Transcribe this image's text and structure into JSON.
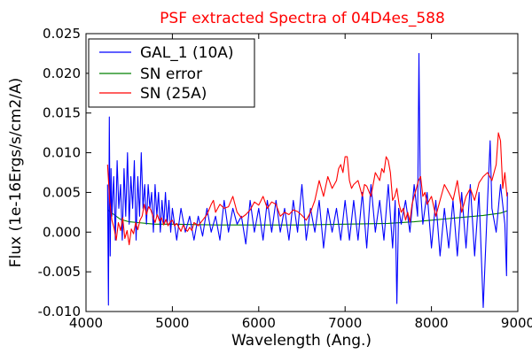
{
  "chart_data": {
    "type": "line",
    "title": "PSF extracted Spectra of 04D4es_588",
    "title_color": "#ff0000",
    "xlabel": "Wavelength (Ang.)",
    "ylabel": "Flux (1e-16Ergs/s/cm2/A)",
    "xlim": [
      4000,
      9000
    ],
    "ylim": [
      -0.01,
      0.025
    ],
    "x_ticks": [
      "4000",
      "5000",
      "6000",
      "7000",
      "8000",
      "9000"
    ],
    "y_ticks": [
      "-0.010",
      "-0.005",
      "0.000",
      "0.005",
      "0.010",
      "0.015",
      "0.020",
      "0.025"
    ],
    "grid": false,
    "legend_position": "upper-left",
    "series": [
      {
        "name": "GAL_1 (10A)",
        "color": "#0000ff",
        "points": [
          [
            4250,
            0.006
          ],
          [
            4260,
            -0.0092
          ],
          [
            4270,
            0.0145
          ],
          [
            4280,
            -0.003
          ],
          [
            4290,
            0.008
          ],
          [
            4300,
            0.002
          ],
          [
            4320,
            0.007
          ],
          [
            4340,
            -0.001
          ],
          [
            4360,
            0.009
          ],
          [
            4380,
            0.003
          ],
          [
            4400,
            0.006
          ],
          [
            4420,
            -0.001
          ],
          [
            4440,
            0.008
          ],
          [
            4460,
            0.002
          ],
          [
            4480,
            0.01
          ],
          [
            4500,
            0.001
          ],
          [
            4520,
            0.007
          ],
          [
            4540,
            0.003
          ],
          [
            4560,
            0.009
          ],
          [
            4580,
            -0.001
          ],
          [
            4600,
            0.007
          ],
          [
            4620,
            0.002
          ],
          [
            4640,
            0.01
          ],
          [
            4660,
            0.003
          ],
          [
            4680,
            0.006
          ],
          [
            4700,
            0.001
          ],
          [
            4720,
            0.006
          ],
          [
            4740,
            0.003
          ],
          [
            4760,
            0.005
          ],
          [
            4780,
            0.0
          ],
          [
            4800,
            0.006
          ],
          [
            4820,
            0.002
          ],
          [
            4840,
            0.005
          ],
          [
            4860,
            0.0
          ],
          [
            4880,
            0.004
          ],
          [
            4900,
            0.001
          ],
          [
            4920,
            0.005
          ],
          [
            4940,
            0.001
          ],
          [
            4960,
            0.004
          ],
          [
            4980,
            0.0
          ],
          [
            5000,
            0.003
          ],
          [
            5050,
            -0.001
          ],
          [
            5100,
            0.003
          ],
          [
            5150,
            0.0
          ],
          [
            5200,
            0.002
          ],
          [
            5250,
            -0.001
          ],
          [
            5300,
            0.002
          ],
          [
            5350,
            -0.0005
          ],
          [
            5400,
            0.003
          ],
          [
            5450,
            0.0
          ],
          [
            5500,
            0.002
          ],
          [
            5550,
            -0.001
          ],
          [
            5600,
            0.004
          ],
          [
            5650,
            0.0
          ],
          [
            5700,
            0.003
          ],
          [
            5750,
            0.001
          ],
          [
            5800,
            0.002
          ],
          [
            5850,
            -0.0015
          ],
          [
            5900,
            0.004
          ],
          [
            5950,
            0.0
          ],
          [
            6000,
            0.003
          ],
          [
            6050,
            -0.001
          ],
          [
            6100,
            0.004
          ],
          [
            6150,
            0.0
          ],
          [
            6200,
            0.004
          ],
          [
            6250,
            0.0
          ],
          [
            6300,
            0.003
          ],
          [
            6350,
            -0.001
          ],
          [
            6400,
            0.004
          ],
          [
            6450,
            0.0
          ],
          [
            6500,
            0.006
          ],
          [
            6550,
            -0.001
          ],
          [
            6600,
            0.003
          ],
          [
            6650,
            0.0
          ],
          [
            6700,
            0.004
          ],
          [
            6750,
            -0.002
          ],
          [
            6800,
            0.003
          ],
          [
            6850,
            0.0
          ],
          [
            6900,
            0.003
          ],
          [
            6950,
            -0.001
          ],
          [
            7000,
            0.004
          ],
          [
            7050,
            -0.001
          ],
          [
            7100,
            0.004
          ],
          [
            7150,
            -0.001
          ],
          [
            7200,
            0.005
          ],
          [
            7250,
            -0.002
          ],
          [
            7300,
            0.006
          ],
          [
            7350,
            0.0
          ],
          [
            7400,
            0.004
          ],
          [
            7450,
            -0.001
          ],
          [
            7500,
            0.006
          ],
          [
            7550,
            -0.002
          ],
          [
            7580,
            0.004
          ],
          [
            7600,
            -0.009
          ],
          [
            7620,
            0.003
          ],
          [
            7650,
            0.001
          ],
          [
            7700,
            0.004
          ],
          [
            7750,
            0.0
          ],
          [
            7800,
            0.006
          ],
          [
            7840,
            0.002
          ],
          [
            7855,
            0.0225
          ],
          [
            7870,
            0.006
          ],
          [
            7900,
            0.001
          ],
          [
            7950,
            0.005
          ],
          [
            8000,
            -0.002
          ],
          [
            8050,
            0.004
          ],
          [
            8100,
            -0.003
          ],
          [
            8150,
            0.003
          ],
          [
            8200,
            -0.002
          ],
          [
            8250,
            0.004
          ],
          [
            8300,
            -0.003
          ],
          [
            8350,
            0.005
          ],
          [
            8400,
            -0.002
          ],
          [
            8450,
            0.006
          ],
          [
            8500,
            -0.003
          ],
          [
            8550,
            0.005
          ],
          [
            8600,
            -0.0095
          ],
          [
            8650,
            0.004
          ],
          [
            8680,
            0.0115
          ],
          [
            8700,
            0.003
          ],
          [
            8750,
            0.0
          ],
          [
            8800,
            0.006
          ],
          [
            8850,
            0.001
          ],
          [
            8870,
            -0.0055
          ],
          [
            8880,
            0.005
          ]
        ]
      },
      {
        "name": "SN error",
        "color": "#008000",
        "points": [
          [
            4250,
            0.0028
          ],
          [
            4300,
            0.0024
          ],
          [
            4400,
            0.0016
          ],
          [
            4500,
            0.0013
          ],
          [
            4600,
            0.0012
          ],
          [
            4700,
            0.0011
          ],
          [
            4800,
            0.001
          ],
          [
            5000,
            0.001
          ],
          [
            5500,
            0.0009
          ],
          [
            6000,
            0.0009
          ],
          [
            6500,
            0.0009
          ],
          [
            7000,
            0.001
          ],
          [
            7500,
            0.0011
          ],
          [
            7800,
            0.0013
          ],
          [
            8000,
            0.0015
          ],
          [
            8200,
            0.0017
          ],
          [
            8400,
            0.0019
          ],
          [
            8600,
            0.0021
          ],
          [
            8800,
            0.0024
          ],
          [
            8880,
            0.0027
          ]
        ]
      },
      {
        "name": "SN (25A)",
        "color": "#ff0000",
        "points": [
          [
            4250,
            0.0085
          ],
          [
            4275,
            0.0038
          ],
          [
            4300,
            0.0015
          ],
          [
            4325,
            0.0005
          ],
          [
            4350,
            -0.001
          ],
          [
            4375,
            0.0012
          ],
          [
            4400,
            0.0002
          ],
          [
            4425,
            0.0018
          ],
          [
            4450,
            -0.0008
          ],
          [
            4475,
            0.0002
          ],
          [
            4500,
            -0.0016
          ],
          [
            4525,
            0.0004
          ],
          [
            4550,
            -0.0002
          ],
          [
            4575,
            0.0012
          ],
          [
            4600,
            0.0003
          ],
          [
            4625,
            0.0015
          ],
          [
            4650,
            0.002
          ],
          [
            4675,
            0.0035
          ],
          [
            4700,
            0.0022
          ],
          [
            4725,
            0.0032
          ],
          [
            4750,
            0.0028
          ],
          [
            4775,
            0.002
          ],
          [
            4800,
            0.0012
          ],
          [
            4825,
            0.0022
          ],
          [
            4850,
            0.0014
          ],
          [
            4875,
            0.0018
          ],
          [
            4900,
            0.0009
          ],
          [
            4925,
            0.0016
          ],
          [
            4950,
            0.0008
          ],
          [
            4975,
            0.0013
          ],
          [
            5000,
            0.0015
          ],
          [
            5025,
            0.0008
          ],
          [
            5050,
            0.0011
          ],
          [
            5075,
            0.0006
          ],
          [
            5100,
            0.0001
          ],
          [
            5125,
            0.0009
          ],
          [
            5150,
            0.0004
          ],
          [
            5175,
            0.0001
          ],
          [
            5200,
            0.0006
          ],
          [
            5225,
            0.0002
          ],
          [
            5250,
            0.0012
          ],
          [
            5300,
            0.0008
          ],
          [
            5350,
            0.0015
          ],
          [
            5400,
            0.0022
          ],
          [
            5450,
            0.0035
          ],
          [
            5475,
            0.004
          ],
          [
            5500,
            0.0025
          ],
          [
            5550,
            0.0035
          ],
          [
            5600,
            0.003
          ],
          [
            5650,
            0.0032
          ],
          [
            5700,
            0.0045
          ],
          [
            5750,
            0.0025
          ],
          [
            5800,
            0.0018
          ],
          [
            5850,
            0.0022
          ],
          [
            5900,
            0.0028
          ],
          [
            5950,
            0.0038
          ],
          [
            6000,
            0.0034
          ],
          [
            6050,
            0.0045
          ],
          [
            6100,
            0.003
          ],
          [
            6150,
            0.0038
          ],
          [
            6200,
            0.0035
          ],
          [
            6250,
            0.002
          ],
          [
            6300,
            0.0025
          ],
          [
            6350,
            0.0022
          ],
          [
            6400,
            0.0028
          ],
          [
            6450,
            0.0026
          ],
          [
            6500,
            0.0021
          ],
          [
            6550,
            0.0015
          ],
          [
            6600,
            0.0025
          ],
          [
            6650,
            0.004
          ],
          [
            6700,
            0.0065
          ],
          [
            6750,
            0.0045
          ],
          [
            6800,
            0.007
          ],
          [
            6850,
            0.0055
          ],
          [
            6900,
            0.0065
          ],
          [
            6925,
            0.008
          ],
          [
            6950,
            0.0085
          ],
          [
            6975,
            0.0075
          ],
          [
            7000,
            0.0095
          ],
          [
            7025,
            0.0095
          ],
          [
            7050,
            0.0065
          ],
          [
            7075,
            0.0055
          ],
          [
            7100,
            0.006
          ],
          [
            7150,
            0.0065
          ],
          [
            7200,
            0.0045
          ],
          [
            7225,
            0.006
          ],
          [
            7250,
            0.0058
          ],
          [
            7300,
            0.0045
          ],
          [
            7350,
            0.0075
          ],
          [
            7400,
            0.0065
          ],
          [
            7425,
            0.008
          ],
          [
            7450,
            0.0075
          ],
          [
            7475,
            0.0095
          ],
          [
            7500,
            0.009
          ],
          [
            7525,
            0.0075
          ],
          [
            7550,
            0.004
          ],
          [
            7575,
            0.0045
          ],
          [
            7600,
            0.0055
          ],
          [
            7625,
            0.0035
          ],
          [
            7650,
            0.0025
          ],
          [
            7675,
            0.003
          ],
          [
            7700,
            0.0015
          ],
          [
            7725,
            0.0025
          ],
          [
            7750,
            0.0013
          ],
          [
            7775,
            0.0035
          ],
          [
            7800,
            0.0045
          ],
          [
            7825,
            0.0055
          ],
          [
            7850,
            0.0065
          ],
          [
            7875,
            0.007
          ],
          [
            7900,
            0.0045
          ],
          [
            7925,
            0.005
          ],
          [
            7950,
            0.0035
          ],
          [
            7975,
            0.004
          ],
          [
            8000,
            0.0045
          ],
          [
            8050,
            0.002
          ],
          [
            8100,
            0.004
          ],
          [
            8150,
            0.006
          ],
          [
            8200,
            0.005
          ],
          [
            8250,
            0.004
          ],
          [
            8300,
            0.0065
          ],
          [
            8350,
            0.0025
          ],
          [
            8400,
            0.0045
          ],
          [
            8450,
            0.0055
          ],
          [
            8500,
            0.004
          ],
          [
            8550,
            0.0062
          ],
          [
            8600,
            0.007
          ],
          [
            8650,
            0.0075
          ],
          [
            8700,
            0.0065
          ],
          [
            8750,
            0.0085
          ],
          [
            8775,
            0.0125
          ],
          [
            8800,
            0.0115
          ],
          [
            8825,
            0.0055
          ],
          [
            8850,
            0.0075
          ],
          [
            8875,
            0.0045
          ]
        ]
      }
    ]
  }
}
